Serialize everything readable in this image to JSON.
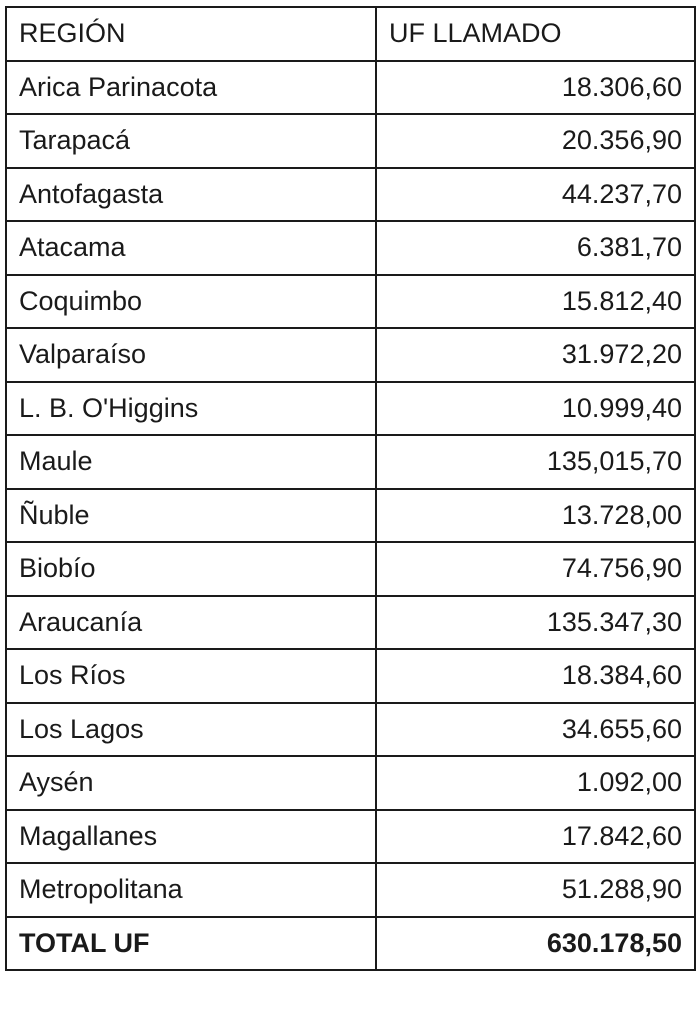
{
  "table": {
    "headers": [
      "REGIÓN",
      "UF LLAMADO"
    ],
    "rows": [
      [
        "Arica Parinacota",
        "18.306,60"
      ],
      [
        "Tarapacá",
        "20.356,90"
      ],
      [
        "Antofagasta",
        "44.237,70"
      ],
      [
        "Atacama",
        "6.381,70"
      ],
      [
        "Coquimbo",
        "15.812,40"
      ],
      [
        "Valparaíso",
        "31.972,20"
      ],
      [
        "L. B. O'Higgins",
        "10.999,40"
      ],
      [
        "Maule",
        "135,015,70"
      ],
      [
        "Ñuble",
        "13.728,00"
      ],
      [
        "Biobío",
        "74.756,90"
      ],
      [
        "Araucanía",
        "135.347,30"
      ],
      [
        "Los Ríos",
        "18.384,60"
      ],
      [
        "Los Lagos",
        "34.655,60"
      ],
      [
        "Aysén",
        "1.092,00"
      ],
      [
        "Magallanes",
        "17.842,60"
      ],
      [
        "Metropolitana",
        "51.288,90"
      ]
    ],
    "total": [
      "TOTAL UF",
      "630.178,50"
    ]
  }
}
